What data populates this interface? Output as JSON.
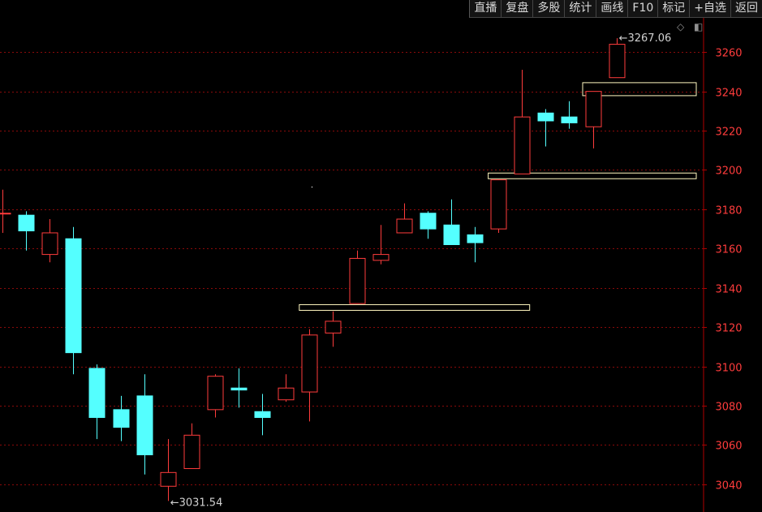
{
  "toolbar": {
    "items": [
      "直播",
      "复盘",
      "多股",
      "统计",
      "画线",
      "F10",
      "标记",
      "+自选",
      "返回"
    ]
  },
  "icons": {
    "diamond": "diamond-icon",
    "panel": "panel-toggle-icon"
  },
  "colors": {
    "up": "#ff3c3c",
    "down": "#54ffff",
    "grid": "#8a0a0a",
    "axis": "#b00000",
    "box": "#fff8c0"
  },
  "chart_data": {
    "type": "candlestick",
    "ylim": [
      3026,
      3282
    ],
    "yticks": [
      3040,
      3060,
      3080,
      3100,
      3120,
      3140,
      3160,
      3180,
      3200,
      3220,
      3240,
      3260
    ],
    "candles": [
      {
        "o": 3178,
        "h": 3190,
        "l": 3168,
        "c": 3178
      },
      {
        "o": 3177,
        "h": 3179,
        "l": 3159,
        "c": 3169
      },
      {
        "o": 3157,
        "h": 3175,
        "l": 3153,
        "c": 3168
      },
      {
        "o": 3165,
        "h": 3171,
        "l": 3096,
        "c": 3107
      },
      {
        "o": 3099,
        "h": 3101,
        "l": 3063,
        "c": 3074
      },
      {
        "o": 3078,
        "h": 3085,
        "l": 3062,
        "c": 3069
      },
      {
        "o": 3085,
        "h": 3096,
        "l": 3045,
        "c": 3055
      },
      {
        "o": 3039,
        "h": 3063,
        "l": 3031.54,
        "c": 3046
      },
      {
        "o": 3048,
        "h": 3071,
        "l": 3048,
        "c": 3065
      },
      {
        "o": 3078,
        "h": 3096,
        "l": 3074,
        "c": 3095
      },
      {
        "o": 3089,
        "h": 3099,
        "l": 3079,
        "c": 3088
      },
      {
        "o": 3077,
        "h": 3086,
        "l": 3065,
        "c": 3074
      },
      {
        "o": 3083,
        "h": 3096,
        "l": 3082,
        "c": 3089
      },
      {
        "o": 3087,
        "h": 3119,
        "l": 3072,
        "c": 3116
      },
      {
        "o": 3117,
        "h": 3128,
        "l": 3110,
        "c": 3123
      },
      {
        "o": 3132,
        "h": 3159,
        "l": 3132,
        "c": 3155
      },
      {
        "o": 3154,
        "h": 3172,
        "l": 3152,
        "c": 3157
      },
      {
        "o": 3168,
        "h": 3183,
        "l": 3168,
        "c": 3175
      },
      {
        "o": 3178,
        "h": 3179,
        "l": 3165,
        "c": 3170
      },
      {
        "o": 3172,
        "h": 3185,
        "l": 3162,
        "c": 3162
      },
      {
        "o": 3167,
        "h": 3171,
        "l": 3153,
        "c": 3163
      },
      {
        "o": 3170,
        "h": 3195,
        "l": 3168,
        "c": 3195
      },
      {
        "o": 3198,
        "h": 3251,
        "l": 3198,
        "c": 3227
      },
      {
        "o": 3229,
        "h": 3231,
        "l": 3212,
        "c": 3225
      },
      {
        "o": 3227,
        "h": 3235,
        "l": 3221,
        "c": 3224
      },
      {
        "o": 3222,
        "h": 3240,
        "l": 3211,
        "c": 3240
      },
      {
        "o": 3247,
        "h": 3267.06,
        "l": 3247,
        "c": 3264
      }
    ],
    "annotations": [
      {
        "text": "3267.06",
        "candle": 26,
        "value": 3267.06
      },
      {
        "text": "3031.54",
        "candle": 7,
        "value": 3031.54
      }
    ],
    "boxes": [
      {
        "from": 13,
        "to": 22,
        "value": 3130
      },
      {
        "from": 21,
        "to": 30,
        "value": 3197
      },
      {
        "from": 25,
        "to": 30,
        "value": 3243
      }
    ]
  }
}
